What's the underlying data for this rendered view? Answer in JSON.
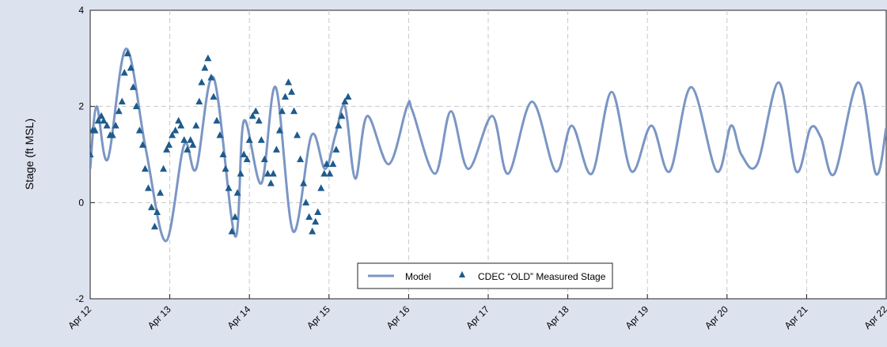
{
  "chart_data": {
    "type": "line",
    "title": "",
    "xlabel": "",
    "ylabel": "Stage (ft MSL)",
    "xlim": [
      "Apr 12",
      "Apr 22"
    ],
    "ylim": [
      -2,
      4
    ],
    "y_ticks": [
      "-2",
      "0",
      "2",
      "4"
    ],
    "x_ticks": [
      "Apr 12",
      "Apr 13",
      "Apr 14",
      "Apr 15",
      "Apr 16",
      "Apr 17",
      "Apr 18",
      "Apr 19",
      "Apr 20",
      "Apr 21",
      "Apr 22"
    ],
    "grid": true,
    "legend_position": "bottom-center",
    "series": [
      {
        "name": "Model",
        "kind": "line",
        "color": "#7a96c4",
        "x": [
          0.0,
          0.08,
          0.22,
          0.45,
          0.7,
          0.95,
          1.18,
          1.33,
          1.55,
          1.82,
          1.93,
          2.15,
          2.33,
          2.55,
          2.78,
          2.95,
          3.08,
          3.2,
          3.33,
          3.48,
          3.75,
          3.98,
          4.05,
          4.33,
          4.53,
          4.75,
          5.05,
          5.25,
          5.55,
          5.85,
          6.05,
          6.3,
          6.55,
          6.8,
          7.05,
          7.28,
          7.55,
          7.87,
          8.05,
          8.18,
          8.38,
          8.65,
          8.87,
          9.05,
          9.18,
          9.35,
          9.65,
          9.87,
          10.0
        ],
        "y": [
          0.7,
          2.0,
          0.9,
          3.2,
          1.1,
          -0.8,
          1.2,
          0.7,
          2.6,
          -0.7,
          1.7,
          0.4,
          2.4,
          -0.6,
          1.4,
          0.7,
          1.4,
          2.0,
          0.5,
          1.8,
          0.8,
          2.0,
          1.9,
          0.6,
          1.9,
          0.7,
          1.8,
          0.6,
          2.1,
          0.65,
          1.6,
          0.6,
          2.3,
          0.65,
          1.6,
          0.65,
          2.4,
          0.65,
          1.6,
          1.0,
          0.8,
          2.5,
          0.65,
          1.55,
          1.35,
          0.6,
          2.5,
          0.6,
          1.55
        ]
      },
      {
        "name": "CDEC “OLD” Measured Stage",
        "kind": "scatter",
        "marker": "triangle",
        "color": "#1f5b8c",
        "x": [
          0.0,
          0.03,
          0.06,
          0.1,
          0.14,
          0.17,
          0.21,
          0.25,
          0.28,
          0.32,
          0.36,
          0.4,
          0.43,
          0.47,
          0.51,
          0.54,
          0.58,
          0.62,
          0.66,
          0.69,
          0.73,
          0.77,
          0.81,
          0.84,
          0.88,
          0.92,
          0.96,
          0.99,
          1.03,
          1.07,
          1.11,
          1.14,
          1.18,
          1.22,
          1.26,
          1.29,
          1.33,
          1.37,
          1.4,
          1.44,
          1.48,
          1.52,
          1.55,
          1.59,
          1.63,
          1.67,
          1.7,
          1.74,
          1.78,
          1.82,
          1.85,
          1.89,
          1.93,
          1.97,
          2.0,
          2.04,
          2.08,
          2.12,
          2.15,
          2.19,
          2.23,
          2.27,
          2.3,
          2.34,
          2.38,
          2.41,
          2.45,
          2.49,
          2.53,
          2.56,
          2.6,
          2.64,
          2.68,
          2.71,
          2.75,
          2.79,
          2.83,
          2.86,
          2.9,
          2.94,
          2.97,
          3.01,
          3.05,
          3.09,
          3.12,
          3.16,
          3.2,
          3.24
        ],
        "y": [
          1.0,
          1.5,
          1.5,
          1.7,
          1.8,
          1.7,
          1.6,
          1.4,
          1.4,
          1.6,
          1.9,
          2.1,
          2.7,
          3.1,
          2.8,
          2.4,
          2.0,
          1.5,
          1.2,
          0.7,
          0.3,
          -0.1,
          -0.5,
          -0.2,
          0.2,
          0.7,
          1.1,
          1.2,
          1.4,
          1.5,
          1.7,
          1.6,
          1.3,
          1.1,
          1.3,
          1.2,
          1.6,
          2.1,
          2.5,
          2.8,
          3.0,
          2.6,
          2.2,
          1.7,
          1.4,
          1.0,
          0.7,
          0.3,
          -0.6,
          -0.3,
          0.2,
          0.6,
          1.0,
          0.9,
          1.3,
          1.8,
          1.9,
          1.7,
          1.3,
          0.9,
          0.6,
          0.4,
          0.6,
          1.1,
          1.5,
          1.9,
          2.2,
          2.5,
          2.3,
          1.9,
          1.4,
          0.9,
          0.4,
          0.0,
          -0.3,
          -0.6,
          -0.4,
          -0.2,
          0.3,
          0.6,
          0.8,
          0.6,
          0.8,
          1.1,
          1.6,
          1.8,
          2.1,
          2.2
        ]
      }
    ]
  }
}
